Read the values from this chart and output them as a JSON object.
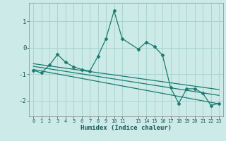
{
  "xlabel": "Humidex (Indice chaleur)",
  "bg_color": "#cceae8",
  "grid_color": "#aad4d0",
  "line_color": "#1a7a6e",
  "ylim": [
    -2.6,
    1.7
  ],
  "xlim": [
    -0.5,
    23.5
  ],
  "yticks": [
    -2,
    -1,
    0,
    1
  ],
  "x_positions": [
    0,
    1,
    2,
    3,
    4,
    5,
    6,
    7,
    8,
    9,
    10,
    11,
    13,
    14,
    15,
    16,
    17,
    18,
    19,
    20,
    21,
    22,
    23
  ],
  "x_tick_labels": [
    "0",
    "1",
    "2",
    "3",
    "4",
    "5",
    "6",
    "7",
    "8",
    "9",
    "10",
    "11",
    "13",
    "14",
    "15",
    "16",
    "17",
    "18",
    "19",
    "20",
    "21",
    "22",
    "23"
  ],
  "series": [
    [
      0,
      -0.85
    ],
    [
      1,
      -0.95
    ],
    [
      2,
      -0.65
    ],
    [
      3,
      -0.25
    ],
    [
      4,
      -0.55
    ],
    [
      5,
      -0.72
    ],
    [
      6,
      -0.82
    ],
    [
      7,
      -0.88
    ],
    [
      8,
      -0.32
    ],
    [
      9,
      0.35
    ],
    [
      10,
      1.4
    ],
    [
      11,
      0.35
    ],
    [
      13,
      -0.05
    ],
    [
      14,
      0.22
    ],
    [
      15,
      0.05
    ],
    [
      16,
      -0.28
    ],
    [
      17,
      -1.5
    ],
    [
      18,
      -2.1
    ],
    [
      19,
      -1.55
    ],
    [
      20,
      -1.55
    ],
    [
      21,
      -1.72
    ],
    [
      22,
      -2.18
    ],
    [
      23,
      -2.1
    ]
  ],
  "trend_lines": [
    {
      "x": [
        0,
        23
      ],
      "y": [
        -0.82,
        -2.12
      ]
    },
    {
      "x": [
        0,
        23
      ],
      "y": [
        -0.7,
        -1.8
      ]
    },
    {
      "x": [
        0,
        23
      ],
      "y": [
        -0.6,
        -1.58
      ]
    }
  ]
}
